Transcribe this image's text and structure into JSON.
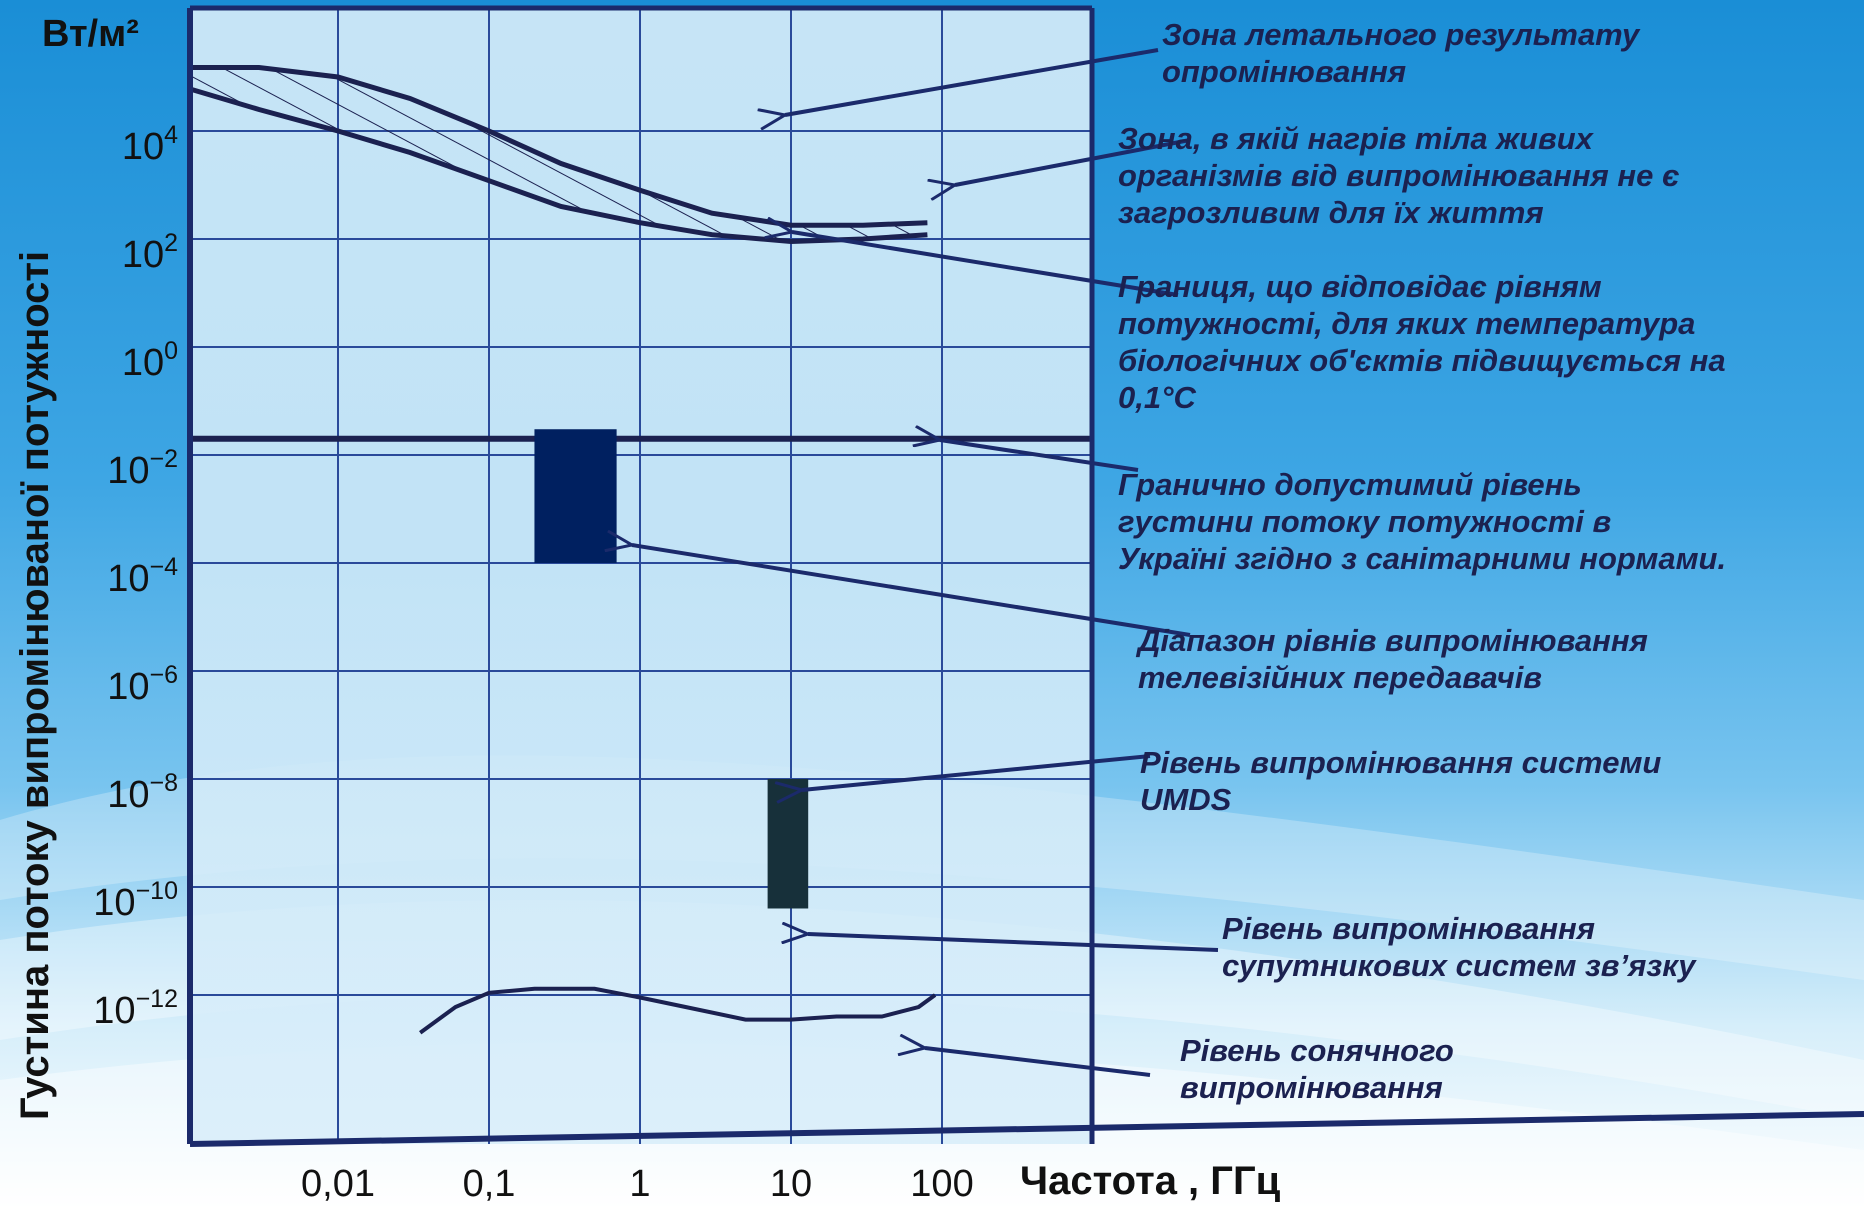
{
  "chart_data": {
    "type": "line",
    "x_scale": "log",
    "y_scale": "log",
    "y_unit": "Вт/м²",
    "ylabel": "Густина потоку випромінюваної потужності",
    "xlabel": "Частота , ГГц",
    "x_ticks": [
      "0,01",
      "0,1",
      "1",
      "10",
      "100"
    ],
    "y_ticks": [
      {
        "exp": "4",
        "value": 10000
      },
      {
        "exp": "2",
        "value": 100
      },
      {
        "exp": "0",
        "value": 1
      },
      {
        "exp": "−2",
        "value": 0.01
      },
      {
        "exp": "−4",
        "value": 0.0001
      },
      {
        "exp": "−6",
        "value": 1e-06
      },
      {
        "exp": "−8",
        "value": 1e-08
      },
      {
        "exp": "−10",
        "value": 1e-10
      },
      {
        "exp": "−12",
        "value": 1e-12
      }
    ],
    "grid": true,
    "series": [
      {
        "key": "lethal_upper",
        "x": [
          0.001,
          0.003,
          0.01,
          0.03,
          0.1,
          0.3,
          1,
          3,
          10,
          30,
          80
        ],
        "y": [
          150000,
          150000,
          100000,
          40000,
          10000,
          2500,
          800,
          300,
          180,
          180,
          200
        ]
      },
      {
        "key": "heating_boundary",
        "x": [
          0.001,
          0.003,
          0.01,
          0.03,
          0.1,
          0.3,
          1,
          3,
          10,
          30,
          80
        ],
        "y": [
          60000,
          25000,
          10000,
          4000,
          1200,
          400,
          200,
          120,
          90,
          100,
          120
        ]
      },
      {
        "key": "ukraine_limit",
        "x": [
          0.001,
          100
        ],
        "y": [
          0.02,
          0.02
        ]
      },
      {
        "key": "solar",
        "x": [
          0.035,
          0.06,
          0.1,
          0.2,
          0.5,
          1,
          2,
          5,
          10,
          20,
          40,
          70,
          90
        ],
        "y": [
          2e-13,
          6e-13,
          1.1e-12,
          1.3e-12,
          1.3e-12,
          9e-13,
          6e-13,
          3.5e-13,
          3.5e-13,
          4e-13,
          4e-13,
          6e-13,
          1e-12
        ]
      }
    ],
    "bars": [
      {
        "key": "tv_transmitters",
        "x0": 0.2,
        "x1": 0.7,
        "y0": 0.0001,
        "y1": 0.03,
        "color": "#002060"
      },
      {
        "key": "umds_satellite",
        "x0": 7,
        "x1": 13,
        "y0": 4e-11,
        "y1": 1e-08,
        "color": "#17303a"
      }
    ]
  },
  "annotations": [
    {
      "key": "lethal",
      "text": "Зона летального результату\nопромінювання"
    },
    {
      "key": "safe",
      "text": "Зона, в якій нагрів тіла живих\nорганізмів від випромінювання не є\nзагрозливим для їх життя"
    },
    {
      "key": "boundary",
      "text": "Границя, що відповідає рівням\nпотужності, для яких температура\nбіологічних об'єктів підвищується на\n0,1°С"
    },
    {
      "key": "ukraine",
      "text": "Гранично допустимий  рівень\nгустини   потоку потужності в\nУкраїні згідно з санітарними нормами."
    },
    {
      "key": "tv",
      "text": "Діапазон рівнів випромінювання\nтелевізійних передавачів"
    },
    {
      "key": "umds",
      "text": "Рівень випромінювання системи\nUMDS"
    },
    {
      "key": "satellite",
      "text": "Рівень випромінювання\nсупутникових систем зв’язку"
    },
    {
      "key": "solar",
      "text": "Рівень сонячного\nвипромінювання"
    }
  ],
  "colors": {
    "axis": "#1b2a6b",
    "grid": "#2a4a9a",
    "curve": "#1b2150",
    "arrow": "#1b2a6b"
  }
}
